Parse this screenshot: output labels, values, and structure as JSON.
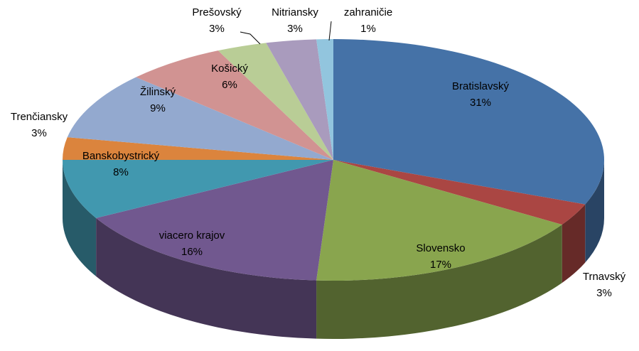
{
  "chart_data": {
    "type": "pie3d",
    "categories": [
      "Bratislavský",
      "Trnavský",
      "Slovensko",
      "viacero krajov",
      "Banskobystrický",
      "Trenčiansky",
      "Žilinský",
      "Košický",
      "Prešovský",
      "Nitriansky",
      "zahraničie"
    ],
    "values": [
      31,
      3,
      17,
      16,
      8,
      3,
      9,
      6,
      3,
      3,
      1
    ],
    "value_labels": [
      "31%",
      "3%",
      "17%",
      "16%",
      "8%",
      "3%",
      "9%",
      "6%",
      "3%",
      "3%",
      "1%"
    ],
    "colors": [
      "#4572a7",
      "#aa4643",
      "#89a54e",
      "#71588f",
      "#4198af",
      "#db843d",
      "#93a9cf",
      "#d19392",
      "#b9cd96",
      "#a99bbd",
      "#92c5de"
    ]
  }
}
